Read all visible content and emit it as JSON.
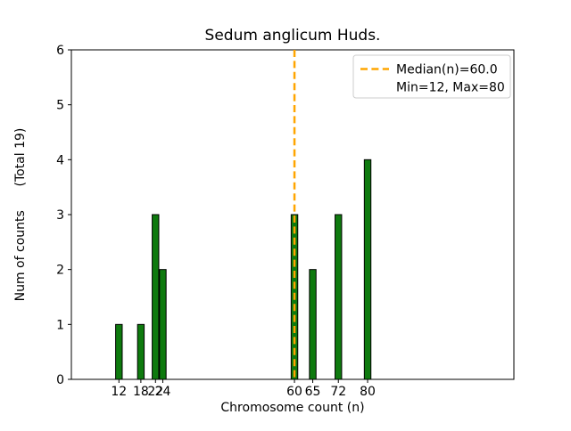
{
  "figure": {
    "background": "#ffffff"
  },
  "chart_data": {
    "type": "bar",
    "title": "Sedum anglicum Huds.",
    "xlabel": "Chromosome count (n)",
    "ylabel": "Num of counts      (Total 19)",
    "total_counts": 19,
    "categories": [
      12,
      18,
      22,
      24,
      60,
      65,
      72,
      80
    ],
    "values": [
      1,
      1,
      3,
      2,
      3,
      2,
      3,
      4
    ],
    "xlim": [
      -1,
      120
    ],
    "ylim": [
      0,
      6
    ],
    "yticks": [
      0,
      1,
      2,
      3,
      4,
      5,
      6
    ],
    "grid": false,
    "bar_color": "#0e7a0e",
    "bar_edge_color": "#000000",
    "median": 60.0,
    "median_line_color": "#ffa500",
    "min": 12,
    "max": 80,
    "legend": {
      "position": "upper right",
      "line1": "Median(n)=60.0",
      "line2": "Min=12, Max=80"
    }
  }
}
